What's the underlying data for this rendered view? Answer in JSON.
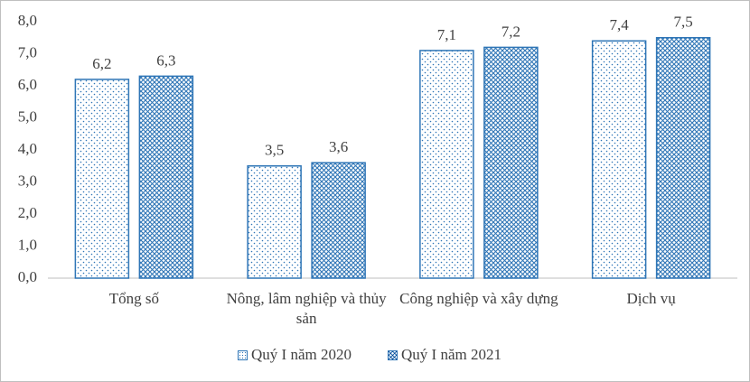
{
  "chart_data": {
    "type": "bar",
    "categories": [
      "Tổng số",
      "Nông, lâm nghiệp và thủy sản",
      "Công nghiệp và xây dựng",
      "Dịch vụ"
    ],
    "series": [
      {
        "name": "Quý I năm 2020",
        "color": "#2e75b6",
        "values": [
          6.2,
          3.5,
          7.1,
          7.4
        ],
        "value_labels": [
          "6,2",
          "3,5",
          "7,1",
          "7,4"
        ]
      },
      {
        "name": "Quý I năm 2021",
        "color": "#2e75b6",
        "values": [
          6.3,
          3.6,
          7.2,
          7.5
        ],
        "value_labels": [
          "6,3",
          "3,6",
          "7,2",
          "7,5"
        ]
      }
    ],
    "ylim": [
      0,
      8
    ],
    "yticks": [
      {
        "value": 0,
        "label": "0,0"
      },
      {
        "value": 1,
        "label": "1,0"
      },
      {
        "value": 2,
        "label": "2,0"
      },
      {
        "value": 3,
        "label": "3,0"
      },
      {
        "value": 4,
        "label": "4,0"
      },
      {
        "value": 5,
        "label": "5,0"
      },
      {
        "value": 6,
        "label": "6,0"
      },
      {
        "value": 7,
        "label": "7,0"
      },
      {
        "value": 8,
        "label": "8,0"
      }
    ],
    "grid": false
  }
}
